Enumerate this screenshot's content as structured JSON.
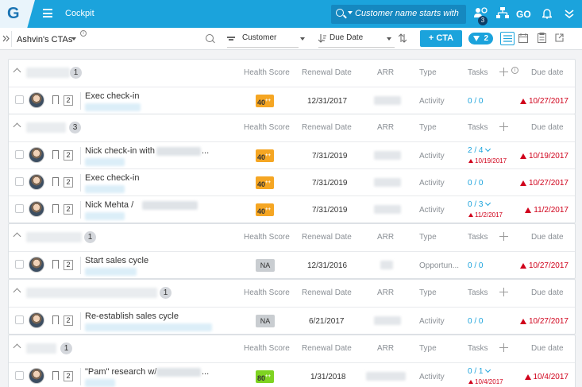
{
  "app": {
    "logo": "G",
    "title": "Cockpit"
  },
  "search": {
    "placeholder": "Customer name starts with"
  },
  "topbar": {
    "notification_count": "3",
    "go_label": "GO"
  },
  "toolbar": {
    "view_name": "Ashvin's CTAs",
    "group_by": "Customer",
    "sort_by": "Due Date",
    "cta_button": "+ CTA",
    "filter_count": "2"
  },
  "columns": {
    "health": "Health Score",
    "renewal": "Renewal Date",
    "arr": "ARR",
    "type": "Type",
    "tasks": "Tasks",
    "due": "Due date"
  },
  "groups": [
    {
      "count": "1",
      "rows": [
        {
          "num": "2",
          "title": "Exec check-in",
          "score": "40",
          "score_color": "orange",
          "renewal": "12/31/2017",
          "type": "Activity",
          "tasks": "0 / 0",
          "due": "10/27/2017"
        }
      ]
    },
    {
      "count": "3",
      "rows": [
        {
          "num": "2",
          "title": "Nick check-in with",
          "title_suffix": "...",
          "score": "40",
          "score_color": "orange",
          "renewal": "7/31/2019",
          "type": "Activity",
          "tasks": "2 / 4",
          "task_due": "10/19/2017",
          "due": "10/19/2017"
        },
        {
          "num": "2",
          "title": "Exec check-in",
          "score": "40",
          "score_color": "orange",
          "renewal": "7/31/2019",
          "type": "Activity",
          "tasks": "0 / 0",
          "due": "10/27/2017"
        },
        {
          "num": "2",
          "title": "Nick Mehta /",
          "score": "40",
          "score_color": "orange",
          "renewal": "7/31/2019",
          "type": "Activity",
          "tasks": "0 / 3",
          "task_due": "11/2/2017",
          "due": "11/2/2017"
        }
      ]
    },
    {
      "count": "1",
      "rows": [
        {
          "num": "2",
          "title": "Start sales cycle",
          "score": "NA",
          "score_color": "gray",
          "renewal": "12/31/2016",
          "type": "Opportun...",
          "tasks": "0 / 0",
          "due": "10/27/2017"
        }
      ]
    },
    {
      "count": "1",
      "rows": [
        {
          "num": "2",
          "title": "Re-establish sales cycle",
          "score": "NA",
          "score_color": "gray",
          "renewal": "6/21/2017",
          "type": "Activity",
          "tasks": "0 / 0",
          "due": "10/27/2017"
        }
      ]
    },
    {
      "count": "1",
      "rows": [
        {
          "num": "2",
          "title": "\"Pam\" research w/",
          "title_suffix": "...",
          "score": "80",
          "score_color": "green",
          "renewal": "1/31/2018",
          "type": "Activity",
          "tasks": "0 / 1",
          "task_due": "10/4/2017",
          "due": "10/4/2017"
        }
      ]
    }
  ],
  "colors": {
    "brand": "#1ba3dc",
    "overdue": "#d0021b",
    "score_orange": "#f5a623",
    "score_green": "#7ed321"
  }
}
